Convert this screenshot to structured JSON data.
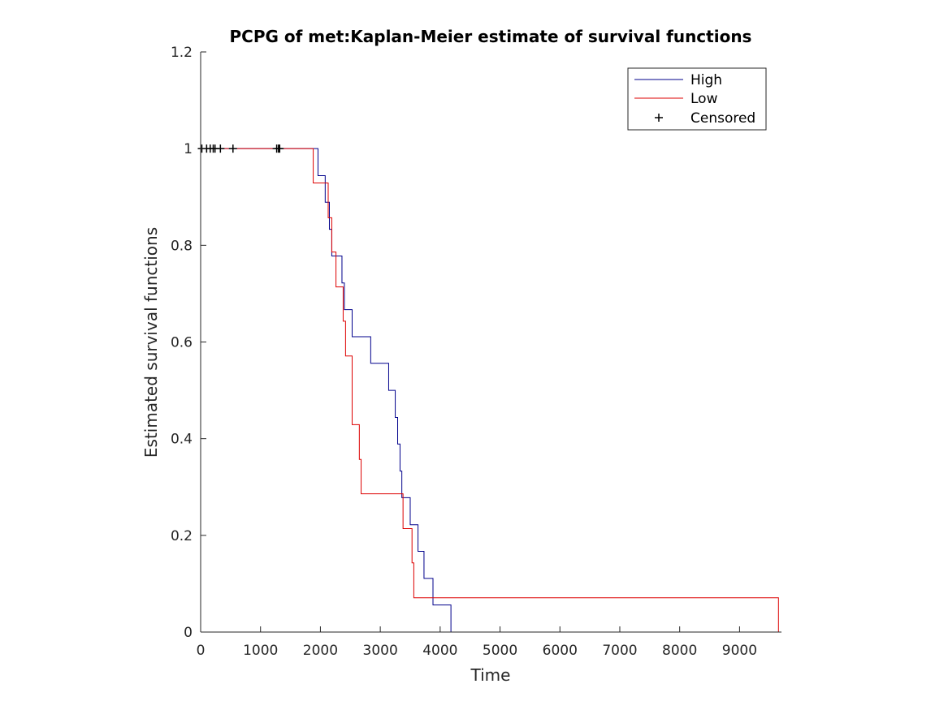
{
  "chart_data": {
    "type": "line",
    "title": "PCPG of met:Kaplan-Meier estimate of survival functions",
    "xlabel": "Time",
    "ylabel": "Estimated survival functions",
    "xlim": [
      0,
      9700
    ],
    "ylim": [
      0,
      1.2
    ],
    "xticks": [
      0,
      1000,
      2000,
      3000,
      4000,
      5000,
      6000,
      7000,
      8000,
      9000
    ],
    "yticks": [
      0,
      0.2,
      0.4,
      0.6,
      0.8,
      1,
      1.2
    ],
    "xtick_labels": [
      "0",
      "1000",
      "2000",
      "3000",
      "4000",
      "5000",
      "6000",
      "7000",
      "8000",
      "9000"
    ],
    "ytick_labels": [
      "0",
      "0.2",
      "0.4",
      "0.6",
      "0.8",
      "1",
      "1.2"
    ],
    "grid": false,
    "legend_position": "top-right",
    "legend": {
      "high": "High",
      "low": "Low",
      "censored": "Censored"
    },
    "series": [
      {
        "name": "High",
        "color": "#00008b",
        "style": "step",
        "x": [
          0,
          1930,
          1960,
          2080,
          2150,
          2170,
          2190,
          2250,
          2360,
          2400,
          2420,
          2530,
          2840,
          3140,
          3250,
          3290,
          3330,
          3360,
          3500,
          3630,
          3730,
          3880,
          4180
        ],
        "y": [
          1,
          1,
          0.944,
          0.889,
          0.833,
          0.833,
          0.778,
          0.778,
          0.722,
          0.667,
          0.667,
          0.611,
          0.556,
          0.5,
          0.444,
          0.389,
          0.333,
          0.278,
          0.222,
          0.167,
          0.111,
          0.056,
          0
        ]
      },
      {
        "name": "Low",
        "color": "#dd0000",
        "style": "step",
        "x": [
          0,
          1880,
          2080,
          2130,
          2190,
          2260,
          2340,
          2380,
          2420,
          2530,
          2650,
          2680,
          3380,
          3400,
          3530,
          3560,
          9650
        ],
        "y": [
          1,
          0.929,
          0.929,
          0.857,
          0.786,
          0.714,
          0.714,
          0.643,
          0.571,
          0.429,
          0.357,
          0.286,
          0.214,
          0.214,
          0.143,
          0.071,
          0
        ]
      }
    ],
    "censored": {
      "name": "Censored",
      "color": "#000000",
      "x": [
        20,
        100,
        160,
        210,
        240,
        330,
        540,
        1270,
        1300,
        1320
      ],
      "y": [
        1,
        1,
        1,
        1,
        1,
        1,
        1,
        1,
        1,
        1
      ]
    }
  }
}
